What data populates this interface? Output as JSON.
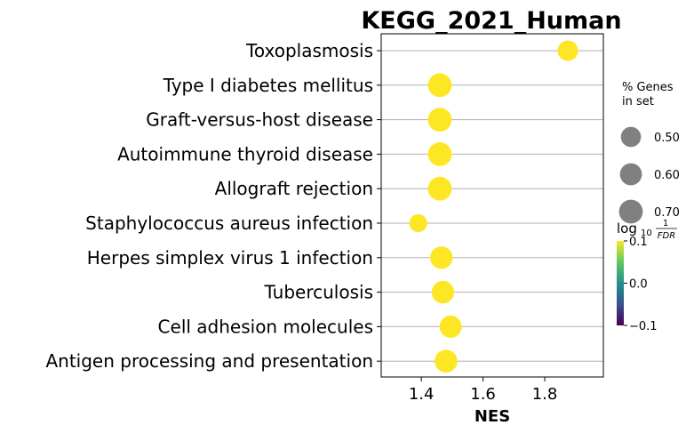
{
  "chart_data": {
    "type": "scatter",
    "title": "KEGG_2021_Human",
    "xlabel": "NES",
    "xlim": [
      1.27,
      1.99
    ],
    "xticks": [
      "1.4",
      "1.6",
      "1.8"
    ],
    "terms": [
      "Toxoplasmosis",
      "Type I diabetes mellitus",
      "Graft-versus-host disease",
      "Autoimmune thyroid disease",
      "Allograft rejection",
      "Staphylococcus aureus infection",
      "Herpes simplex virus 1 infection",
      "Tuberculosis",
      "Cell adhesion molecules",
      "Antigen processing and presentation"
    ],
    "nes": [
      1.875,
      1.46,
      1.46,
      1.46,
      1.46,
      1.39,
      1.465,
      1.47,
      1.495,
      1.48
    ],
    "pct_genes": [
      0.52,
      0.7,
      0.7,
      0.7,
      0.7,
      0.4,
      0.63,
      0.63,
      0.61,
      0.64
    ],
    "color": "#fde725",
    "grid": "horizontal",
    "size_legend": {
      "title_line1": "% Genes",
      "title_line2": "in set",
      "labels": [
        "0.50",
        "0.60",
        "0.70"
      ],
      "color": "#808080"
    },
    "colorbar": {
      "label_main": "log",
      "label_sub": "10",
      "frac_num": "1",
      "frac_den": "FDR",
      "ticks": [
        "0.1",
        "0.0",
        "−0.1"
      ]
    }
  }
}
